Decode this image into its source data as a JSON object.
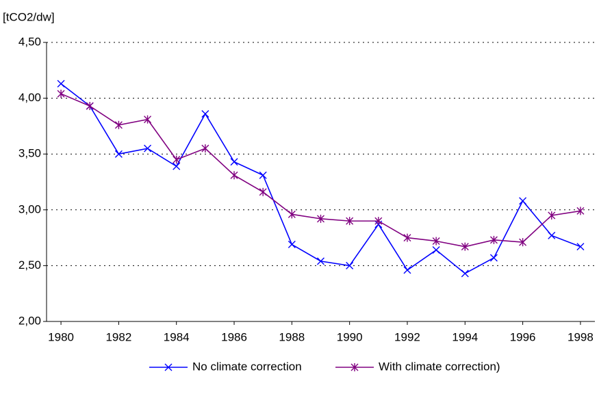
{
  "chart_data": {
    "type": "line",
    "y_label": "[tCO2/dw]",
    "x": [
      1980,
      1981,
      1982,
      1983,
      1984,
      1985,
      1986,
      1987,
      1988,
      1989,
      1990,
      1991,
      1992,
      1993,
      1994,
      1995,
      1996,
      1997,
      1998
    ],
    "series": [
      {
        "name": "No climate correction",
        "color": "#0000ff",
        "marker": "x",
        "values": [
          4.13,
          3.93,
          3.5,
          3.55,
          3.39,
          3.86,
          3.43,
          3.31,
          2.69,
          2.54,
          2.5,
          2.87,
          2.46,
          2.64,
          2.43,
          2.57,
          3.08,
          2.77,
          2.67
        ]
      },
      {
        "name": "With climate correction)",
        "color": "#800080",
        "marker": "star",
        "values": [
          4.04,
          3.93,
          3.76,
          3.81,
          3.45,
          3.55,
          3.31,
          3.16,
          2.96,
          2.92,
          2.9,
          2.9,
          2.75,
          2.72,
          2.67,
          2.73,
          2.71,
          2.95,
          2.99
        ]
      }
    ],
    "xlim": [
      1979.5,
      1998.5
    ],
    "xticks": [
      1980,
      1982,
      1984,
      1986,
      1988,
      1990,
      1992,
      1994,
      1996,
      1998
    ],
    "ylim": [
      2,
      4.5
    ],
    "yticks": [
      {
        "value": 2,
        "label": "2,00"
      },
      {
        "value": 2.5,
        "label": "2,50"
      },
      {
        "value": 3,
        "label": "3,00"
      },
      {
        "value": 3.5,
        "label": "3,50"
      },
      {
        "value": 4,
        "label": "4,00"
      },
      {
        "value": 4.5,
        "label": "4,50"
      }
    ],
    "grid": true,
    "legend": "bottom"
  }
}
